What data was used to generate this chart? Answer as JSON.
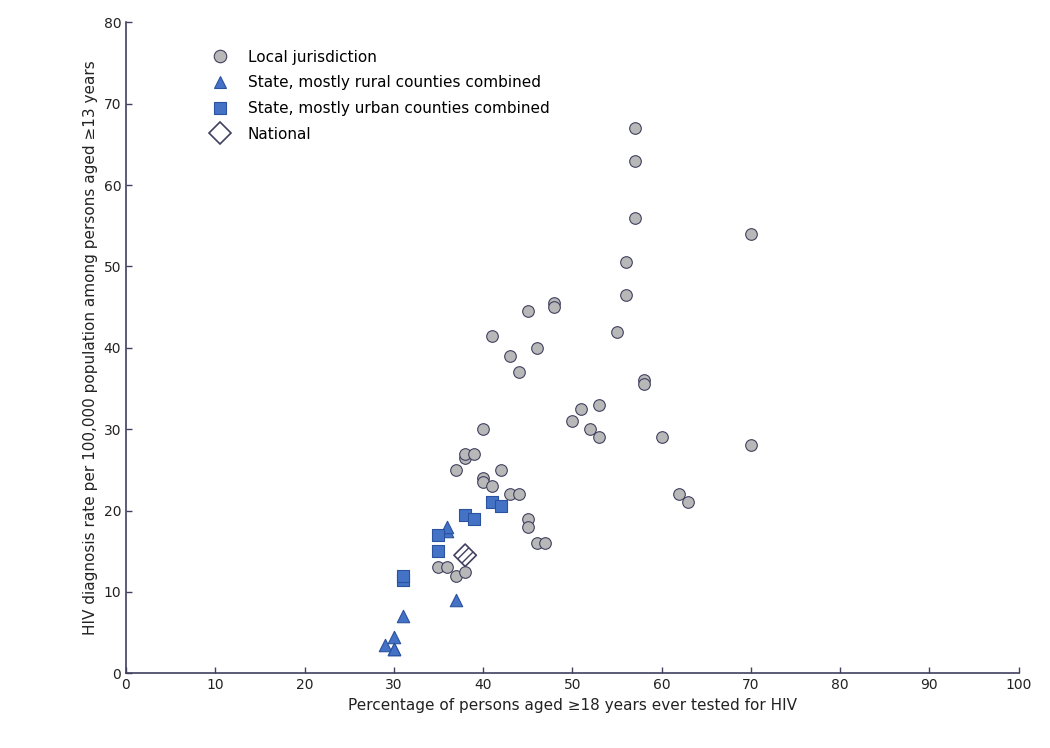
{
  "local_jurisdiction": [
    [
      41,
      41.5
    ],
    [
      43,
      39
    ],
    [
      44,
      37
    ],
    [
      45,
      44.5
    ],
    [
      46,
      40
    ],
    [
      48,
      45.5
    ],
    [
      48,
      45
    ],
    [
      50,
      31
    ],
    [
      51,
      32.5
    ],
    [
      52,
      30
    ],
    [
      53,
      29
    ],
    [
      53,
      33
    ],
    [
      55,
      42
    ],
    [
      56,
      46.5
    ],
    [
      56,
      50.5
    ],
    [
      57,
      56
    ],
    [
      57,
      67
    ],
    [
      57,
      63
    ],
    [
      58,
      36
    ],
    [
      58,
      35.5
    ],
    [
      60,
      29
    ],
    [
      62,
      22
    ],
    [
      63,
      21
    ],
    [
      70,
      54
    ],
    [
      70,
      28
    ],
    [
      40,
      24
    ],
    [
      40,
      23.5
    ],
    [
      41,
      23
    ],
    [
      42,
      25
    ],
    [
      43,
      22
    ],
    [
      44,
      22
    ],
    [
      45,
      19
    ],
    [
      45,
      18
    ],
    [
      46,
      16
    ],
    [
      47,
      16
    ],
    [
      37,
      25
    ],
    [
      38,
      26.5
    ],
    [
      38,
      27
    ],
    [
      39,
      27
    ],
    [
      40,
      30
    ],
    [
      35,
      13
    ],
    [
      36,
      13
    ],
    [
      37,
      12
    ],
    [
      38,
      12.5
    ]
  ],
  "rural_state": [
    [
      29,
      3.5
    ],
    [
      30,
      4.5
    ],
    [
      30,
      3.0
    ],
    [
      30,
      3.0
    ],
    [
      31,
      7.0
    ],
    [
      36,
      17.5
    ],
    [
      36,
      18.0
    ],
    [
      37,
      9.0
    ]
  ],
  "urban_state": [
    [
      31,
      11.5
    ],
    [
      31,
      12.0
    ],
    [
      35,
      15.0
    ],
    [
      35,
      17.0
    ],
    [
      38,
      19.5
    ],
    [
      39,
      19.0
    ],
    [
      41,
      21.0
    ],
    [
      42,
      20.5
    ]
  ],
  "national": [
    [
      38,
      14.5
    ]
  ],
  "circle_facecolor": "#b8b8b8",
  "circle_edgecolor": "#404060",
  "triangle_facecolor": "#4472c4",
  "triangle_edgecolor": "#2a52a0",
  "square_facecolor": "#4472c4",
  "square_edgecolor": "#2a52a0",
  "diamond_facecolor": "#ffffff",
  "diamond_edgecolor": "#404060",
  "spine_color": "#404060",
  "xlabel": "Percentage of persons aged ≥18 years ever tested for HIV",
  "ylabel": "HIV diagnosis rate per 100,000 population among persons aged ≥13 years",
  "xlim": [
    0,
    100
  ],
  "ylim": [
    0,
    80
  ],
  "xticks": [
    0,
    10,
    20,
    30,
    40,
    50,
    60,
    70,
    80,
    90,
    100
  ],
  "yticks": [
    0,
    10,
    20,
    30,
    40,
    50,
    60,
    70,
    80
  ],
  "legend_labels": [
    "Local jurisdiction",
    "State, mostly rural counties combined",
    "State, mostly urban counties combined",
    "National"
  ],
  "circle_size": 70,
  "triangle_size": 80,
  "square_size": 80,
  "diamond_size": 130,
  "background_color": "#ffffff",
  "tick_fontsize": 10,
  "label_fontsize": 11
}
